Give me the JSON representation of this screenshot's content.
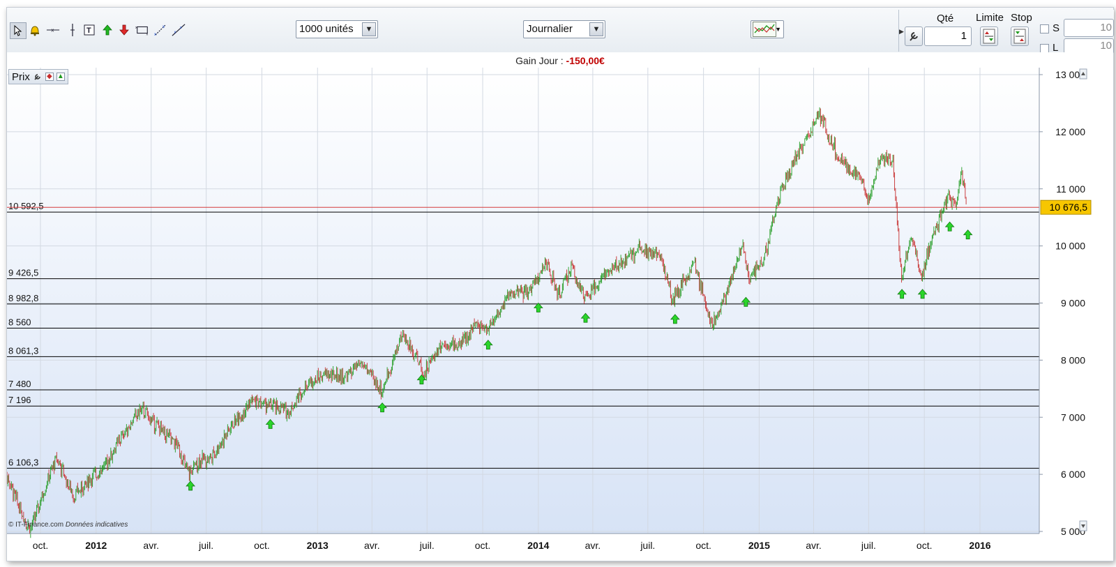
{
  "toolbar": {
    "tools": [
      "cursor-icon",
      "alert-bell-icon",
      "horizontal-line-icon",
      "vertical-line-icon",
      "text-tool-icon",
      "buy-arrow-icon",
      "sell-arrow-icon",
      "rectangle-tool-icon",
      "trend-line-icon",
      "line-tool-icon"
    ],
    "quantity_select": "1000 unités",
    "period_select": "Journalier"
  },
  "order_panel": {
    "qty_label": "Qté",
    "qty_value": "1",
    "limit_label": "Limite",
    "stop_label": "Stop",
    "s_label": "S",
    "l_label": "L",
    "s_value": "10",
    "l_value": "10"
  },
  "gain": {
    "label": "Gain Jour :",
    "value": "-150,00€"
  },
  "chart_panel": {
    "title": "Prix",
    "copyright": "© IT-Finance.com",
    "disclaimer": "Données indicatives",
    "last_price_label": "10 676,5"
  },
  "colors": {
    "up": "#1f9a1f",
    "down": "#c62b2b",
    "signal": "#2bd52b",
    "price_line": "#d43c3c",
    "last_price_bg": "#f7c600"
  },
  "chart_data": {
    "type": "candlestick",
    "y_axis": {
      "min": 5000,
      "max": 13000,
      "ticks": [
        "5 000",
        "6 000",
        "7 000",
        "8 000",
        "9 000",
        "10 000",
        "11 000",
        "12 000",
        "13 000"
      ]
    },
    "x_axis_labels": [
      {
        "label": "oct.",
        "date": "2011-10-01",
        "bold": false
      },
      {
        "label": "2012",
        "date": "2012-01-01",
        "bold": true
      },
      {
        "label": "avr.",
        "date": "2012-04-01",
        "bold": false
      },
      {
        "label": "juil.",
        "date": "2012-07-01",
        "bold": false
      },
      {
        "label": "oct.",
        "date": "2012-10-01",
        "bold": false
      },
      {
        "label": "2013",
        "date": "2013-01-01",
        "bold": true
      },
      {
        "label": "avr.",
        "date": "2013-04-01",
        "bold": false
      },
      {
        "label": "juil.",
        "date": "2013-07-01",
        "bold": false
      },
      {
        "label": "oct.",
        "date": "2013-10-01",
        "bold": false
      },
      {
        "label": "2014",
        "date": "2014-01-01",
        "bold": true
      },
      {
        "label": "avr.",
        "date": "2014-04-01",
        "bold": false
      },
      {
        "label": "juil.",
        "date": "2014-07-01",
        "bold": false
      },
      {
        "label": "oct.",
        "date": "2014-10-01",
        "bold": false
      },
      {
        "label": "2015",
        "date": "2015-01-01",
        "bold": true
      },
      {
        "label": "avr.",
        "date": "2015-04-01",
        "bold": false
      },
      {
        "label": "juil.",
        "date": "2015-07-01",
        "bold": false
      },
      {
        "label": "oct.",
        "date": "2015-10-01",
        "bold": false
      },
      {
        "label": "2016",
        "date": "2016-01-01",
        "bold": true
      }
    ],
    "horizontal_levels": [
      {
        "label": "10 592,5",
        "value": 10592.5
      },
      {
        "label": "9 426,5",
        "value": 9426.5
      },
      {
        "label": "8 982,8",
        "value": 8982.8
      },
      {
        "label": "8 560",
        "value": 8560
      },
      {
        "label": "8 061,3",
        "value": 8061.3
      },
      {
        "label": "7 480",
        "value": 7480
      },
      {
        "label": "7 196",
        "value": 7196
      },
      {
        "label": "6 106,3",
        "value": 6106.3
      }
    ],
    "last_price": 10676.5,
    "price_path": [
      {
        "date": "2011-08-01",
        "value": 6100
      },
      {
        "date": "2011-09-01",
        "value": 5300
      },
      {
        "date": "2011-09-15",
        "value": 5050
      },
      {
        "date": "2011-10-10",
        "value": 5800
      },
      {
        "date": "2011-10-28",
        "value": 6300
      },
      {
        "date": "2011-11-25",
        "value": 5600
      },
      {
        "date": "2011-12-15",
        "value": 5850
      },
      {
        "date": "2012-01-15",
        "value": 6150
      },
      {
        "date": "2012-02-15",
        "value": 6700
      },
      {
        "date": "2012-03-15",
        "value": 7150
      },
      {
        "date": "2012-04-20",
        "value": 6750
      },
      {
        "date": "2012-05-15",
        "value": 6500
      },
      {
        "date": "2012-06-01",
        "value": 6000
      },
      {
        "date": "2012-06-20",
        "value": 6250
      },
      {
        "date": "2012-07-10",
        "value": 6300
      },
      {
        "date": "2012-08-15",
        "value": 6900
      },
      {
        "date": "2012-09-15",
        "value": 7300
      },
      {
        "date": "2012-10-15",
        "value": 7200
      },
      {
        "date": "2012-11-15",
        "value": 7100
      },
      {
        "date": "2012-12-15",
        "value": 7600
      },
      {
        "date": "2013-01-15",
        "value": 7750
      },
      {
        "date": "2013-02-15",
        "value": 7700
      },
      {
        "date": "2013-03-15",
        "value": 7950
      },
      {
        "date": "2013-04-18",
        "value": 7450
      },
      {
        "date": "2013-05-20",
        "value": 8450
      },
      {
        "date": "2013-06-15",
        "value": 8050
      },
      {
        "date": "2013-06-25",
        "value": 7750
      },
      {
        "date": "2013-07-25",
        "value": 8300
      },
      {
        "date": "2013-08-25",
        "value": 8250
      },
      {
        "date": "2013-09-20",
        "value": 8650
      },
      {
        "date": "2013-10-10",
        "value": 8550
      },
      {
        "date": "2013-11-15",
        "value": 9150
      },
      {
        "date": "2013-12-15",
        "value": 9200
      },
      {
        "date": "2014-01-15",
        "value": 9700
      },
      {
        "date": "2014-02-03",
        "value": 9100
      },
      {
        "date": "2014-02-25",
        "value": 9650
      },
      {
        "date": "2014-03-20",
        "value": 9050
      },
      {
        "date": "2014-04-20",
        "value": 9500
      },
      {
        "date": "2014-05-20",
        "value": 9700
      },
      {
        "date": "2014-06-20",
        "value": 10000
      },
      {
        "date": "2014-07-25",
        "value": 9750
      },
      {
        "date": "2014-08-10",
        "value": 9050
      },
      {
        "date": "2014-09-15",
        "value": 9700
      },
      {
        "date": "2014-10-15",
        "value": 8600
      },
      {
        "date": "2014-11-15",
        "value": 9400
      },
      {
        "date": "2014-12-05",
        "value": 10050
      },
      {
        "date": "2014-12-15",
        "value": 9400
      },
      {
        "date": "2015-01-10",
        "value": 9800
      },
      {
        "date": "2015-02-01",
        "value": 10800
      },
      {
        "date": "2015-03-01",
        "value": 11500
      },
      {
        "date": "2015-04-10",
        "value": 12300
      },
      {
        "date": "2015-05-15",
        "value": 11500
      },
      {
        "date": "2015-06-15",
        "value": 11200
      },
      {
        "date": "2015-07-01",
        "value": 10800
      },
      {
        "date": "2015-07-20",
        "value": 11600
      },
      {
        "date": "2015-08-10",
        "value": 11500
      },
      {
        "date": "2015-08-24",
        "value": 9450
      },
      {
        "date": "2015-09-10",
        "value": 10200
      },
      {
        "date": "2015-09-25",
        "value": 9450
      },
      {
        "date": "2015-10-20",
        "value": 10300
      },
      {
        "date": "2015-11-10",
        "value": 10900
      },
      {
        "date": "2015-11-20",
        "value": 10700
      },
      {
        "date": "2015-12-02",
        "value": 11300
      },
      {
        "date": "2015-12-10",
        "value": 10700
      }
    ],
    "signals": [
      {
        "date": "2012-06-05",
        "value": 5880
      },
      {
        "date": "2012-10-15",
        "value": 6960
      },
      {
        "date": "2013-04-18",
        "value": 7250
      },
      {
        "date": "2013-06-22",
        "value": 7740
      },
      {
        "date": "2013-10-10",
        "value": 8350
      },
      {
        "date": "2014-01-01",
        "value": 9000
      },
      {
        "date": "2014-03-20",
        "value": 8820
      },
      {
        "date": "2014-08-15",
        "value": 8800
      },
      {
        "date": "2014-12-10",
        "value": 9100
      },
      {
        "date": "2015-08-25",
        "value": 9240
      },
      {
        "date": "2015-09-28",
        "value": 9240
      },
      {
        "date": "2015-11-12",
        "value": 10420
      },
      {
        "date": "2015-12-12",
        "value": 10280
      }
    ]
  }
}
